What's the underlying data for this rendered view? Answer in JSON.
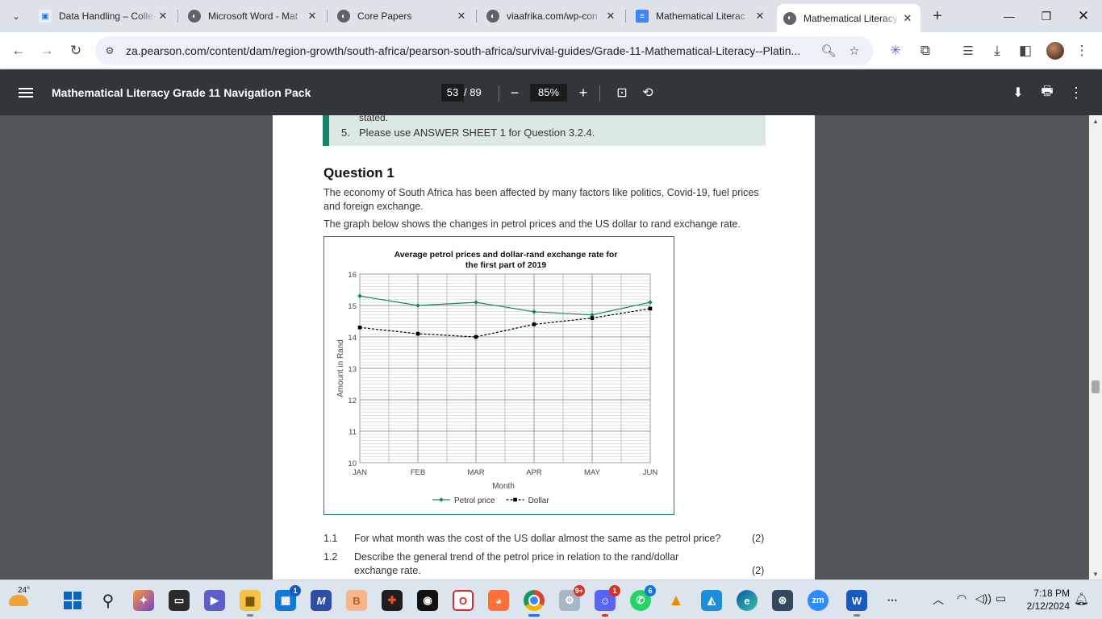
{
  "browser": {
    "tabs": [
      {
        "title": "Data Handling – Colle",
        "icon": "data-handling-favicon",
        "icon_color": "#1a73e8"
      },
      {
        "title": "Microsoft Word - Mat",
        "icon": "globe-favicon",
        "icon_color": "#5f6368"
      },
      {
        "title": "Core Papers",
        "icon": "globe-favicon",
        "icon_color": "#5f6368"
      },
      {
        "title": "viaafrika.com/wp-con",
        "icon": "globe-favicon",
        "icon_color": "#5f6368"
      },
      {
        "title": "Mathematical Literac",
        "icon": "docs-favicon",
        "icon_color": "#4285f4"
      },
      {
        "title": "Mathematical Literacy",
        "icon": "globe-favicon",
        "icon_color": "#5f6368",
        "active": true
      }
    ],
    "url": "za.pearson.com/content/dam/region-growth/south-africa/pearson-south-africa/survival-guides/Grade-11-Mathematical-Literacy--Platin..."
  },
  "pdf": {
    "title": "Mathematical Literacy Grade 11 Navigation Pack",
    "page": "53",
    "total": "/ 89",
    "zoom": "85%"
  },
  "document": {
    "instructions": {
      "stated": "stated.",
      "item_number": "5.",
      "item_text": "Please use ANSWER SHEET 1 for Question 3.2.4."
    },
    "question_heading": "Question 1",
    "para1": "The economy of South Africa has been affected by many factors like politics, Covid-19, fuel prices and foreign exchange.",
    "para2": "The graph below shows the changes in petrol prices and the US dollar to rand exchange rate.",
    "questions": [
      {
        "num": "1.1",
        "text": "For what month was the cost of the US dollar almost the same as the petrol price?",
        "marks": "(2)"
      },
      {
        "num": "1.2",
        "text": "Describe the general trend of the petrol price in relation to the rand/dollar exchange rate.",
        "marks": "(2)"
      }
    ]
  },
  "chart_data": {
    "type": "line",
    "title_line1": "Average petrol prices and dollar-rand exchange rate for",
    "title_line2": "the first part of 2019",
    "xlabel": "Month",
    "ylabel": "Amount in Rand",
    "categories": [
      "JAN",
      "FEB",
      "MAR",
      "APR",
      "MAY",
      "JUN"
    ],
    "ylim": [
      10,
      16
    ],
    "yticks": [
      10,
      11,
      12,
      13,
      14,
      15,
      16
    ],
    "grid": true,
    "legend_position": "bottom",
    "series": [
      {
        "name": "Petrol price",
        "values": [
          15.3,
          15.0,
          15.1,
          14.8,
          14.7,
          15.1
        ],
        "color": "#138766",
        "style": "solid",
        "marker": "diamond"
      },
      {
        "name": "Dollar",
        "values": [
          14.3,
          14.1,
          14.0,
          14.4,
          14.6,
          14.9
        ],
        "color": "#000000",
        "style": "dashed",
        "marker": "square"
      }
    ]
  },
  "taskbar": {
    "weather_temp": "24°",
    "time": "7:18 PM",
    "date": "2/12/2024",
    "badges": {
      "teams": "1",
      "chrome_alt": "9+",
      "discord": "1",
      "whatsapp": "6"
    }
  }
}
